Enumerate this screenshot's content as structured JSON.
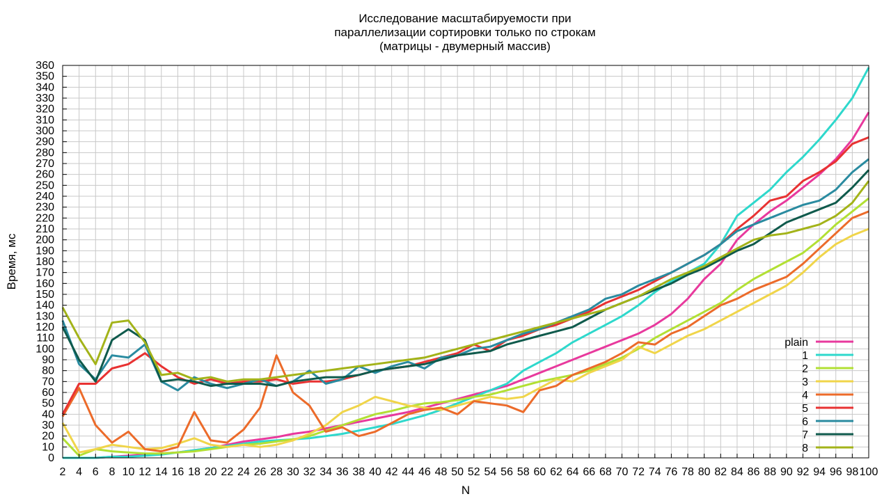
{
  "chart_data": {
    "type": "line",
    "title": [
      "Исследование масштабируемости при",
      "параллелизации сортировки только по строкам",
      "(матрицы - двумерный массив)"
    ],
    "xlabel": "N",
    "ylabel": "Время, мс",
    "xlim": [
      2,
      100
    ],
    "ylim": [
      0,
      360
    ],
    "xticks": [
      2,
      4,
      6,
      8,
      10,
      12,
      14,
      16,
      18,
      20,
      22,
      24,
      26,
      28,
      30,
      32,
      34,
      36,
      38,
      40,
      42,
      44,
      46,
      48,
      50,
      52,
      54,
      56,
      58,
      60,
      62,
      64,
      66,
      68,
      70,
      72,
      74,
      76,
      78,
      80,
      82,
      84,
      86,
      88,
      90,
      92,
      94,
      96,
      98,
      100
    ],
    "yticks": [
      0,
      10,
      20,
      30,
      40,
      50,
      60,
      70,
      80,
      90,
      100,
      110,
      120,
      130,
      140,
      150,
      160,
      170,
      180,
      190,
      200,
      210,
      220,
      230,
      240,
      250,
      260,
      270,
      280,
      290,
      300,
      310,
      320,
      330,
      340,
      350,
      360
    ],
    "grid": true,
    "legend_position": "bottom-right",
    "x_points": [
      2,
      4,
      6,
      8,
      10,
      12,
      14,
      16,
      18,
      20,
      22,
      24,
      26,
      28,
      30,
      32,
      34,
      36,
      38,
      40,
      42,
      44,
      46,
      48,
      50,
      52,
      54,
      56,
      58,
      60,
      62,
      64,
      66,
      68,
      70,
      72,
      74,
      76,
      78,
      80,
      82,
      84,
      86,
      88,
      90,
      92,
      94,
      96,
      98,
      100
    ],
    "series": [
      {
        "name": "plain",
        "color": "#e8399d",
        "values": [
          0,
          0,
          0,
          1,
          2,
          3,
          4,
          5,
          7,
          9,
          12,
          15,
          17,
          19,
          22,
          24,
          27,
          30,
          33,
          36,
          39,
          42,
          46,
          50,
          54,
          58,
          62,
          66,
          72,
          78,
          84,
          90,
          96,
          102,
          108,
          114,
          122,
          132,
          146,
          164,
          178,
          200,
          214,
          226,
          236,
          248,
          260,
          274,
          292,
          317
        ]
      },
      {
        "name": "1",
        "color": "#2ed8cc",
        "values": [
          0,
          0,
          0,
          1,
          1,
          2,
          3,
          5,
          7,
          9,
          11,
          13,
          15,
          16,
          17,
          18,
          20,
          22,
          25,
          28,
          31,
          35,
          39,
          44,
          50,
          56,
          62,
          68,
          80,
          88,
          96,
          106,
          114,
          122,
          130,
          140,
          152,
          162,
          170,
          178,
          196,
          222,
          234,
          246,
          262,
          276,
          292,
          310,
          330,
          358
        ]
      },
      {
        "name": "2",
        "color": "#b2e034",
        "values": [
          18,
          2,
          8,
          6,
          5,
          4,
          4,
          5,
          6,
          8,
          10,
          12,
          13,
          15,
          17,
          20,
          25,
          30,
          35,
          40,
          43,
          47,
          50,
          51,
          53,
          56,
          58,
          62,
          66,
          70,
          73,
          76,
          80,
          86,
          92,
          100,
          110,
          118,
          126,
          134,
          142,
          154,
          164,
          172,
          180,
          188,
          200,
          214,
          226,
          238
        ]
      },
      {
        "name": "3",
        "color": "#f0d54a",
        "values": [
          32,
          5,
          8,
          12,
          10,
          8,
          9,
          13,
          18,
          12,
          10,
          12,
          10,
          12,
          16,
          22,
          30,
          42,
          48,
          56,
          52,
          48,
          46,
          44,
          48,
          52,
          56,
          54,
          56,
          64,
          72,
          70,
          78,
          84,
          90,
          102,
          96,
          104,
          112,
          118,
          126,
          134,
          142,
          150,
          158,
          170,
          184,
          196,
          204,
          210
        ]
      },
      {
        "name": "4",
        "color": "#ec6b2a",
        "values": [
          38,
          64,
          30,
          14,
          24,
          8,
          6,
          10,
          42,
          16,
          14,
          26,
          46,
          94,
          60,
          48,
          24,
          28,
          20,
          24,
          32,
          40,
          44,
          46,
          40,
          52,
          50,
          48,
          42,
          62,
          66,
          76,
          82,
          88,
          96,
          106,
          104,
          114,
          120,
          130,
          140,
          146,
          154,
          160,
          166,
          178,
          192,
          206,
          220,
          226
        ]
      },
      {
        "name": "5",
        "color": "#e83232",
        "values": [
          40,
          68,
          68,
          82,
          86,
          96,
          84,
          74,
          68,
          72,
          68,
          70,
          70,
          72,
          68,
          70,
          70,
          72,
          76,
          80,
          82,
          84,
          88,
          92,
          96,
          104,
          98,
          108,
          112,
          118,
          122,
          128,
          134,
          142,
          148,
          154,
          162,
          170,
          178,
          186,
          196,
          210,
          222,
          236,
          240,
          254,
          262,
          272,
          288,
          294
        ]
      },
      {
        "name": "6",
        "color": "#2a8ba0",
        "values": [
          126,
          86,
          72,
          94,
          92,
          104,
          70,
          62,
          74,
          68,
          64,
          68,
          72,
          66,
          70,
          80,
          68,
          72,
          84,
          78,
          84,
          88,
          82,
          92,
          94,
          100,
          102,
          108,
          114,
          118,
          124,
          130,
          136,
          146,
          150,
          158,
          164,
          170,
          178,
          186,
          196,
          208,
          214,
          220,
          226,
          232,
          236,
          246,
          262,
          274
        ]
      },
      {
        "name": "7",
        "color": "#0f5a4c",
        "values": [
          120,
          90,
          70,
          108,
          118,
          108,
          70,
          72,
          70,
          66,
          68,
          68,
          68,
          66,
          70,
          72,
          74,
          74,
          76,
          80,
          82,
          84,
          86,
          90,
          94,
          96,
          98,
          104,
          108,
          112,
          116,
          120,
          128,
          136,
          142,
          148,
          154,
          160,
          168,
          174,
          182,
          190,
          196,
          206,
          216,
          222,
          228,
          234,
          248,
          264
        ]
      },
      {
        "name": "8",
        "color": "#a3b319",
        "values": [
          138,
          110,
          86,
          124,
          126,
          106,
          76,
          78,
          72,
          74,
          70,
          72,
          72,
          74,
          76,
          78,
          80,
          82,
          84,
          86,
          88,
          90,
          92,
          96,
          100,
          104,
          108,
          112,
          116,
          120,
          124,
          128,
          132,
          136,
          142,
          148,
          156,
          164,
          170,
          176,
          184,
          192,
          200,
          204,
          206,
          210,
          214,
          222,
          234,
          254
        ]
      }
    ]
  }
}
